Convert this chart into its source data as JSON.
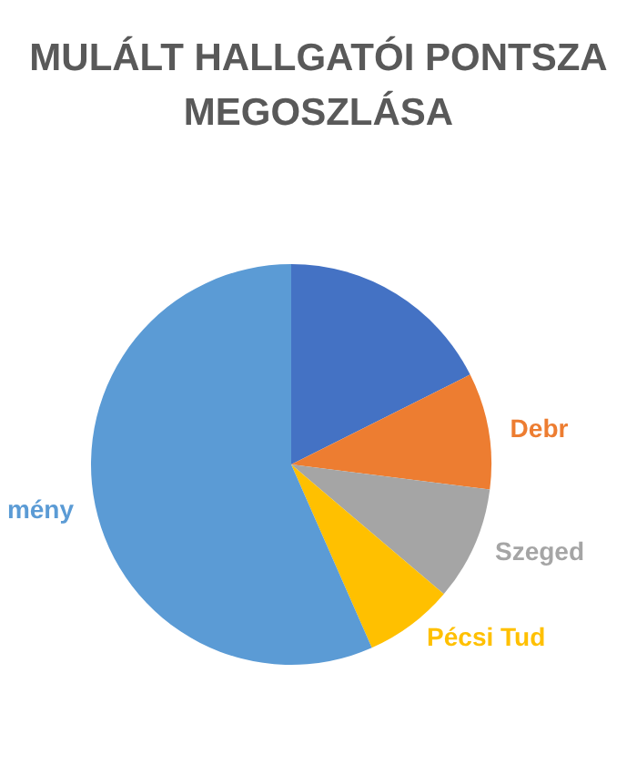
{
  "chart_data": {
    "type": "pie",
    "title": "MULÁLT HALLGATÓI PONTSZA\nMEGOSZLÁSA",
    "categories": [
      null,
      "Debr",
      "Szeged",
      "Pécsi Tud",
      "mény"
    ],
    "values": [
      17.6,
      9.4,
      9.2,
      7.2,
      56.6
    ],
    "colors": [
      "#4472c4",
      "#ed7d31",
      "#a5a5a5",
      "#ffc000",
      "#5b9bd5"
    ],
    "legend": false
  }
}
